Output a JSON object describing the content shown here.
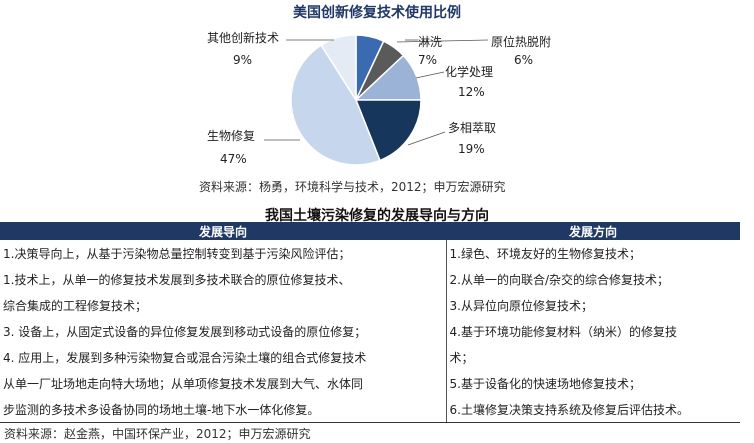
{
  "chart_data": {
    "type": "pie",
    "title": "美国创新修复技术使用比例",
    "slices": [
      {
        "label": "淋洗",
        "value": 7,
        "value_label": "7%",
        "color": "#3a6bb0"
      },
      {
        "label": "原位热脱附",
        "value": 6,
        "value_label": "6%",
        "color": "#5a5a5a"
      },
      {
        "label": "化学处理",
        "value": 12,
        "value_label": "12%",
        "color": "#9bb3d6"
      },
      {
        "label": "多相萃取",
        "value": 19,
        "value_label": "19%",
        "color": "#16365c"
      },
      {
        "label": "生物修复",
        "value": 47,
        "value_label": "47%",
        "color": "#c6d6ec"
      },
      {
        "label": "其他创新技术",
        "value": 9,
        "value_label": "9%",
        "color": "#e4ebf5"
      }
    ]
  },
  "source1": "资料来源：杨勇，环境科学与技术，2012；申万宏源研究",
  "table": {
    "title": "我国土壤污染修复的发展导向与方向",
    "headers": [
      "发展导向",
      "发展方向"
    ],
    "left": [
      "1.决策导向上，从基于污染物总量控制转变到基于污染风险评估；",
      "1.技术上，从单一的修复技术发展到多技术联合的原位修复技术、",
      "综合集成的工程修复技术；",
      "3. 设备上，从固定式设备的异位修复发展到移动式设备的原位修复；",
      "4. 应用上，发展到多种污染物复合或混合污染土壤的组合式修复技术",
      "从单一厂址场地走向特大场地；从单项修复技术发展到大气、水体同",
      "步监测的多技术多设备协同的场地土壤-地下水一体化修复。"
    ],
    "right": [
      "1.绿色、环境友好的生物修复技术；",
      "2.从单一的向联合/杂交的综合修复技术；",
      "3.从异位向原位修复技术；",
      "4.基于环境功能修复材料（纳米）的修复技",
      "术；",
      "5.基于设备化的快速场地修复技术；",
      "6.土壤修复决策支持系统及修复后评估技术。"
    ]
  },
  "source2": "资料来源：赵金燕，中国环保产业，2012；申万宏源研究"
}
